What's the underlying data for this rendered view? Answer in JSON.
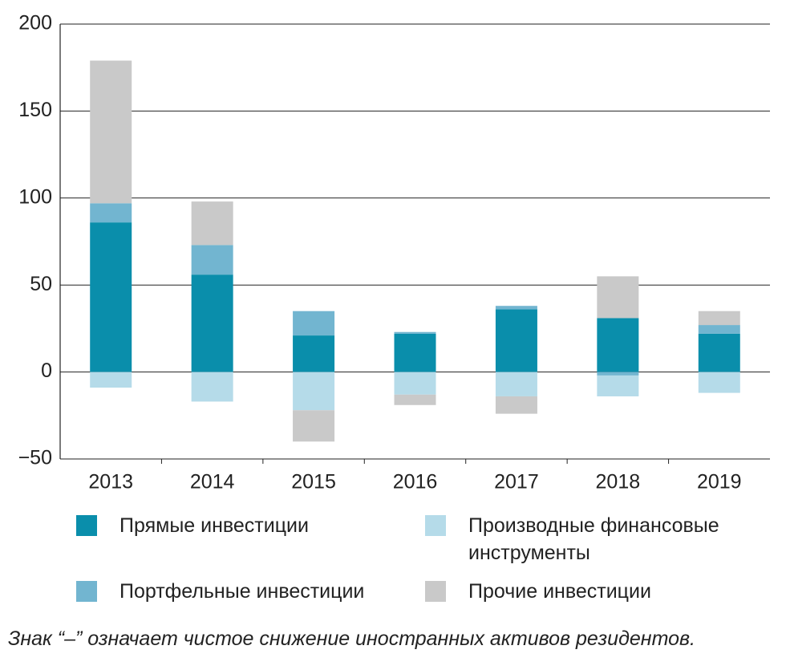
{
  "chart_data": {
    "type": "stacked-bar",
    "categories": [
      "2013",
      "2014",
      "2015",
      "2016",
      "2017",
      "2018",
      "2019"
    ],
    "series": [
      {
        "name": "Прямые инвестиции",
        "color": "#0a8eab",
        "values": [
          86,
          56,
          21,
          22,
          36,
          31,
          22
        ]
      },
      {
        "name": "Портфельные инвестиции",
        "color": "#72b5d0",
        "values": [
          11,
          17,
          14,
          1,
          2,
          -2,
          5
        ]
      },
      {
        "name": "Производные финансовые инструменты",
        "color": "#b5dbe9",
        "values": [
          -9,
          -17,
          -22,
          -13,
          -14,
          -12,
          -12
        ]
      },
      {
        "name": "Прочие инвестиции",
        "color": "#c9c9c9",
        "values": [
          82,
          25,
          -18,
          -6,
          -10,
          24,
          8
        ]
      }
    ],
    "ylim": [
      -50,
      200
    ],
    "yticks": [
      {
        "value": -50,
        "label": "−50"
      },
      0,
      50,
      100,
      150,
      200
    ],
    "grid": true,
    "note": "Знак “–” означает чистое снижение иностранных активов резидентов."
  }
}
